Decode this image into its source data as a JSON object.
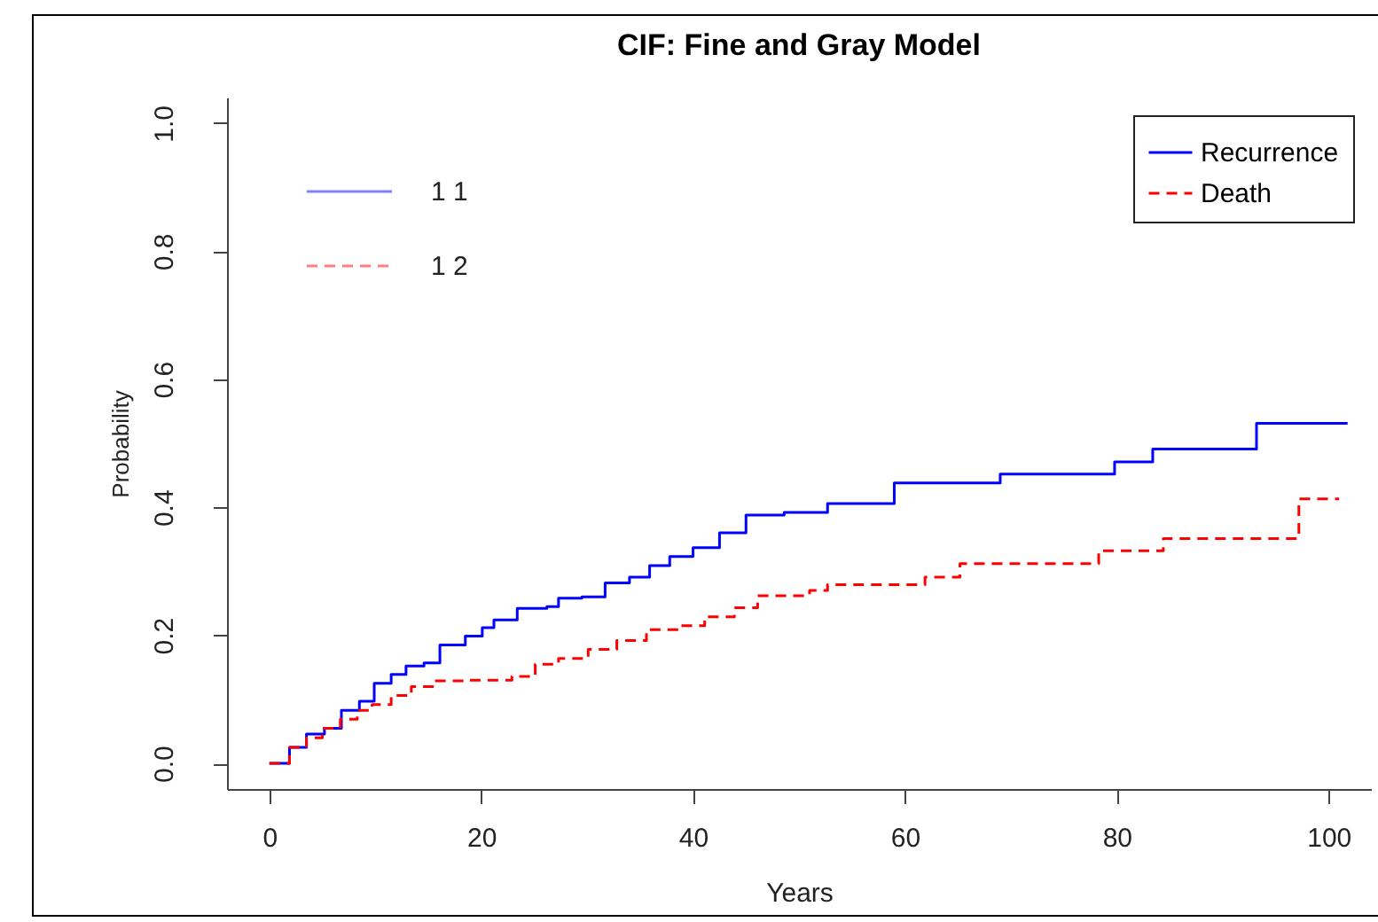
{
  "chart_data": {
    "type": "step",
    "title": "CIF: Fine and Gray Model",
    "xlabel": "Years",
    "ylabel": "Probability",
    "xlim": [
      -4,
      104
    ],
    "ylim": [
      -0.04,
      1.04
    ],
    "xticks": [
      0,
      20,
      40,
      60,
      80,
      100
    ],
    "yticks": [
      {
        "value": 0,
        "label": "0.0"
      },
      {
        "value": 0.2,
        "label": "0.2"
      },
      {
        "value": 0.4,
        "label": "0.4"
      },
      {
        "value": 0.6,
        "label": "0.6"
      },
      {
        "value": 0.8,
        "label": "0.8"
      },
      {
        "value": 1,
        "label": "1.0"
      }
    ],
    "legend": "top right",
    "grid": false,
    "annotations": [
      "1 1",
      "1 2"
    ],
    "series": [
      {
        "name": "Recurrence",
        "color": "#0000ff",
        "line_style": "solid",
        "x": [
          0,
          1.9,
          3.5,
          5.2,
          6.8,
          8.5,
          9.9,
          11.5,
          12.9,
          14.6,
          16.1,
          18.5,
          20.1,
          21.2,
          23.4,
          26.2,
          27.3,
          29.5,
          31.7,
          34.0,
          35.9,
          37.8,
          40.0,
          42.5,
          45.0,
          48.6,
          52.7,
          59.0,
          69.0,
          79.8,
          83.4,
          93.2,
          101.8
        ],
        "values": [
          0,
          0.025,
          0.046,
          0.055,
          0.083,
          0.097,
          0.125,
          0.139,
          0.152,
          0.157,
          0.185,
          0.199,
          0.212,
          0.224,
          0.242,
          0.245,
          0.258,
          0.26,
          0.282,
          0.291,
          0.309,
          0.323,
          0.337,
          0.36,
          0.388,
          0.392,
          0.406,
          0.438,
          0.452,
          0.471,
          0.491,
          0.531,
          0.531
        ]
      },
      {
        "name": "Death",
        "color": "#ff0000",
        "line_style": "dashed",
        "x": [
          0,
          1.9,
          3.5,
          5.0,
          6.7,
          8.3,
          9.7,
          11.5,
          13.4,
          15.6,
          18.5,
          22.9,
          25.1,
          27.3,
          30.1,
          32.8,
          35.6,
          38.9,
          41.1,
          43.9,
          46.1,
          51.0,
          52.7,
          61.9,
          65.2,
          78.3,
          84.4,
          97.2,
          101.0
        ],
        "values": [
          0,
          0.025,
          0.04,
          0.055,
          0.069,
          0.083,
          0.092,
          0.106,
          0.12,
          0.129,
          0.13,
          0.136,
          0.155,
          0.164,
          0.178,
          0.192,
          0.209,
          0.215,
          0.229,
          0.243,
          0.262,
          0.27,
          0.279,
          0.291,
          0.312,
          0.332,
          0.351,
          0.413,
          0.413
        ]
      }
    ]
  }
}
